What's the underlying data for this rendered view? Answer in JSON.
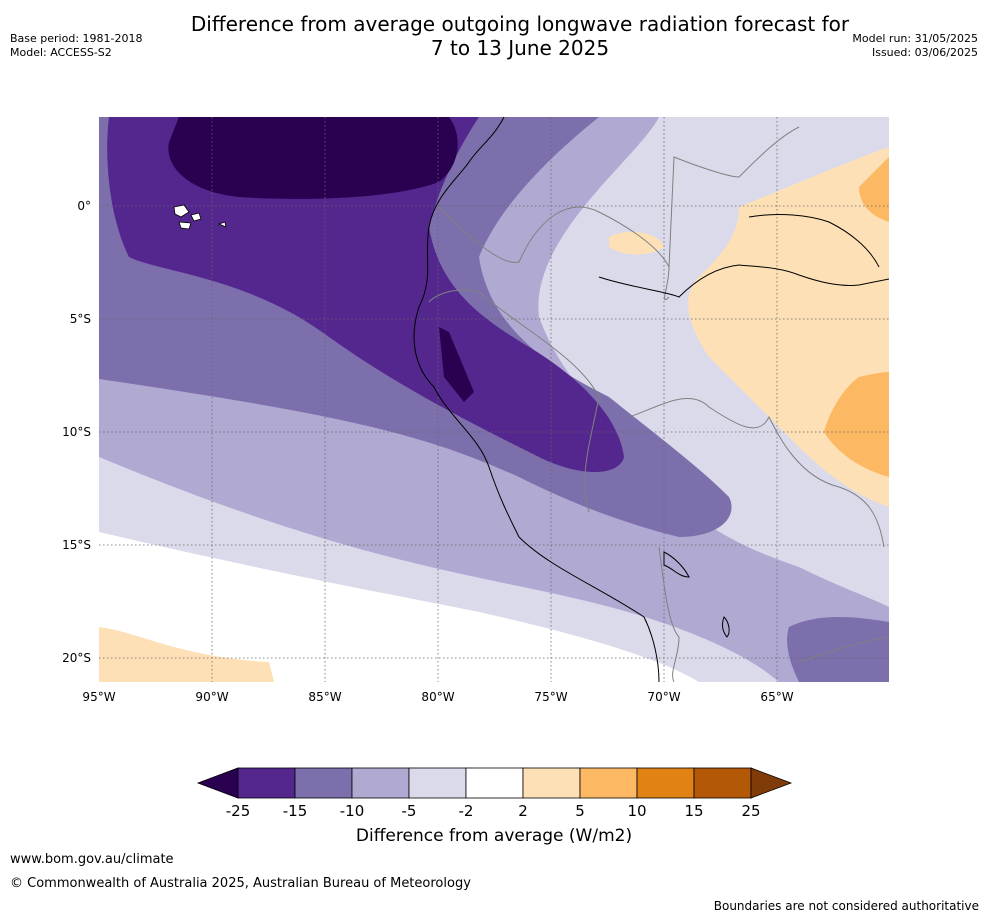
{
  "title": {
    "line1": "Difference from average outgoing longwave radiation forecast for",
    "line2": "7 to 13 June 2025"
  },
  "meta": {
    "base_period": "Base period: 1981-2018",
    "model": "Model: ACCESS-S2",
    "model_run": "Model run: 31/05/2025",
    "issued": "Issued: 03/06/2025"
  },
  "map": {
    "lat_labels": [
      "0°",
      "5°S",
      "10°S",
      "15°S",
      "20°S"
    ],
    "lon_labels": [
      "95°W",
      "90°W",
      "85°W",
      "80°W",
      "75°W",
      "70°W",
      "65°W"
    ]
  },
  "colorbar": {
    "labels": [
      "-25",
      "-15",
      "-10",
      "-5",
      "-2",
      "2",
      "5",
      "10",
      "15",
      "25"
    ],
    "colors": {
      "lt_-25": "#2a0050",
      "-25_-15": "#54278f",
      "-15_-10": "#7c6fab",
      "-10_-5": "#b0a9d2",
      "-5_-2": "#dadaeb",
      "-2_2": "#ffffff",
      "2_5": "#fee0b6",
      "5_10": "#fdb863",
      "10_15": "#e08214",
      "15_25": "#b35806",
      "gt_25": "#7f3b08"
    },
    "title": "Difference from average (W/m2)"
  },
  "footer": {
    "url": "www.bom.gov.au/climate",
    "copyright": "© Commonwealth of Australia 2025, Australian Bureau of Meteorology",
    "disclaimer": "Boundaries are not considered authoritative"
  }
}
